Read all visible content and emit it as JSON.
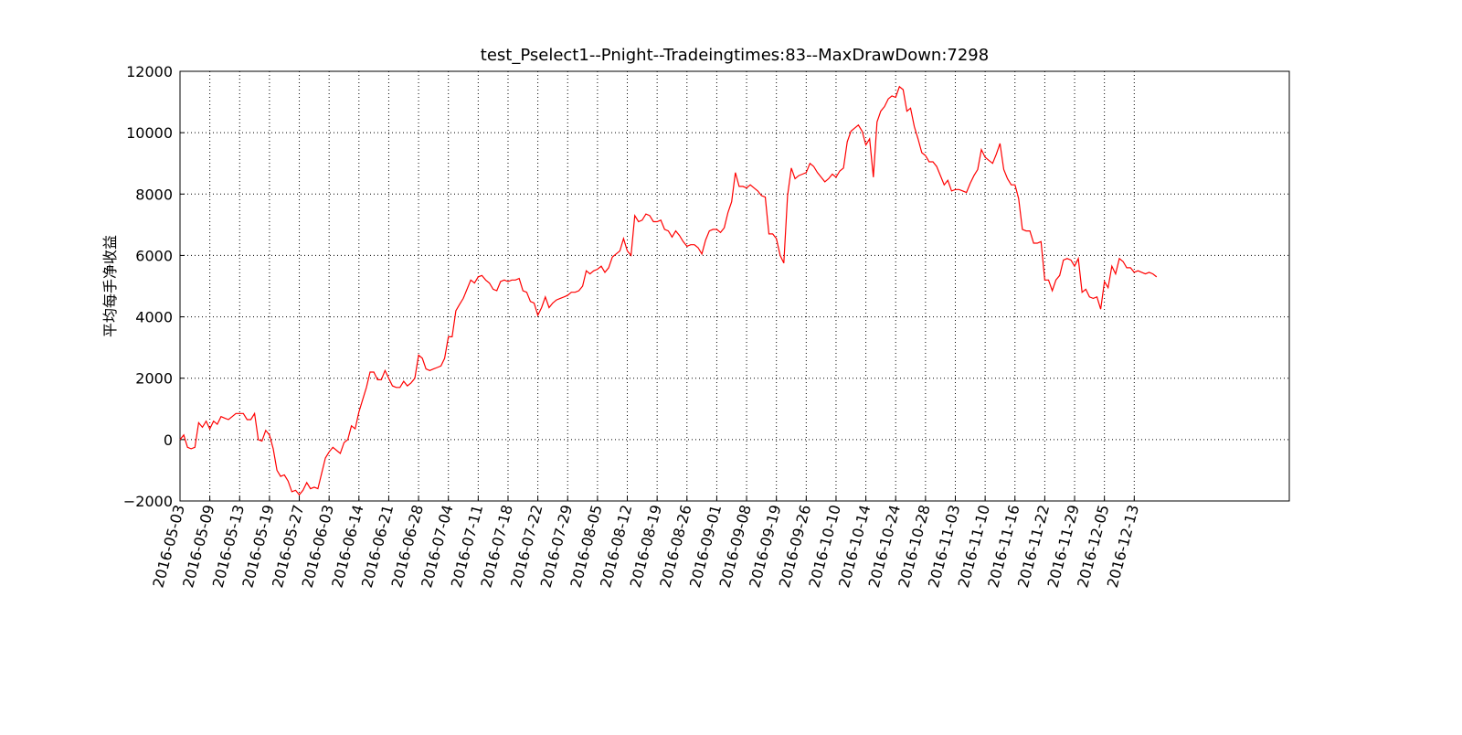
{
  "chart_data": {
    "type": "line",
    "title": "test_Pselect1--Pnight--Tradeingtimes:83--MaxDrawDown:7298",
    "ylabel": "平均每手净收益",
    "color": "#ff0000",
    "grid": true,
    "ylim": [
      -2000,
      12000
    ],
    "yticks": [
      {
        "value": -2000,
        "label": "−2000"
      },
      0,
      2000,
      4000,
      6000,
      8000,
      10000,
      12000
    ],
    "xlim": [
      0,
      297.6
    ],
    "xticks": [
      {
        "value": 0,
        "label": "2016-05-03"
      },
      {
        "value": 8,
        "label": "2016-05-09"
      },
      {
        "value": 16,
        "label": "2016-05-13"
      },
      {
        "value": 24,
        "label": "2016-05-19"
      },
      {
        "value": 32,
        "label": "2016-05-27"
      },
      {
        "value": 40,
        "label": "2016-06-03"
      },
      {
        "value": 48,
        "label": "2016-06-14"
      },
      {
        "value": 56,
        "label": "2016-06-21"
      },
      {
        "value": 64,
        "label": "2016-06-28"
      },
      {
        "value": 72,
        "label": "2016-07-04"
      },
      {
        "value": 80,
        "label": "2016-07-11"
      },
      {
        "value": 88,
        "label": "2016-07-18"
      },
      {
        "value": 96,
        "label": "2016-07-22"
      },
      {
        "value": 104,
        "label": "2016-07-29"
      },
      {
        "value": 112,
        "label": "2016-08-05"
      },
      {
        "value": 120,
        "label": "2016-08-12"
      },
      {
        "value": 128,
        "label": "2016-08-19"
      },
      {
        "value": 136,
        "label": "2016-08-26"
      },
      {
        "value": 144,
        "label": "2016-09-01"
      },
      {
        "value": 152,
        "label": "2016-09-08"
      },
      {
        "value": 160,
        "label": "2016-09-19"
      },
      {
        "value": 168,
        "label": "2016-09-26"
      },
      {
        "value": 176,
        "label": "2016-10-10"
      },
      {
        "value": 184,
        "label": "2016-10-14"
      },
      {
        "value": 192,
        "label": "2016-10-24"
      },
      {
        "value": 200,
        "label": "2016-10-28"
      },
      {
        "value": 208,
        "label": "2016-11-03"
      },
      {
        "value": 216,
        "label": "2016-11-10"
      },
      {
        "value": 224,
        "label": "2016-11-16"
      },
      {
        "value": 232,
        "label": "2016-11-22"
      },
      {
        "value": 240,
        "label": "2016-11-29"
      },
      {
        "value": 248,
        "label": "2016-12-05"
      },
      {
        "value": 256,
        "label": "2016-12-13"
      }
    ],
    "values": [
      0,
      150,
      -250,
      -300,
      -250,
      550,
      400,
      600,
      350,
      600,
      500,
      750,
      700,
      650,
      750,
      850,
      850,
      850,
      650,
      650,
      850,
      0,
      -50,
      300,
      150,
      -300,
      -1000,
      -1200,
      -1150,
      -1350,
      -1700,
      -1650,
      -1800,
      -1650,
      -1400,
      -1600,
      -1550,
      -1600,
      -1100,
      -600,
      -400,
      -250,
      -350,
      -450,
      -100,
      0,
      450,
      350,
      900,
      1300,
      1700,
      2200,
      2200,
      1950,
      1950,
      2250,
      2000,
      1750,
      1700,
      1700,
      1900,
      1750,
      1850,
      2000,
      2750,
      2650,
      2300,
      2250,
      2300,
      2350,
      2400,
      2650,
      3350,
      3350,
      4200,
      4400,
      4600,
      4900,
      5200,
      5100,
      5300,
      5350,
      5200,
      5100,
      4900,
      4850,
      5150,
      5200,
      5150,
      5200,
      5200,
      5250,
      4850,
      4800,
      4500,
      4450,
      4050,
      4300,
      4650,
      4300,
      4450,
      4550,
      4600,
      4650,
      4700,
      4800,
      4800,
      4850,
      5000,
      5500,
      5400,
      5500,
      5550,
      5650,
      5450,
      5600,
      5950,
      6050,
      6150,
      6550,
      6150,
      6000,
      7300,
      7100,
      7150,
      7350,
      7300,
      7100,
      7100,
      7150,
      6850,
      6800,
      6600,
      6800,
      6650,
      6450,
      6300,
      6350,
      6350,
      6250,
      6050,
      6500,
      6800,
      6850,
      6850,
      6750,
      6900,
      7400,
      7750,
      8700,
      8250,
      8250,
      8200,
      8300,
      8200,
      8100,
      7950,
      7900,
      6700,
      6700,
      6550,
      6000,
      5750,
      7950,
      8850,
      8500,
      8600,
      8650,
      8700,
      9000,
      8900,
      8700,
      8550,
      8400,
      8500,
      8650,
      8550,
      8750,
      8850,
      9700,
      10050,
      10150,
      10250,
      10050,
      9600,
      9800,
      8550,
      10350,
      10700,
      10850,
      11100,
      11200,
      11150,
      11500,
      11400,
      10700,
      10800,
      10200,
      9800,
      9350,
      9250,
      9050,
      9050,
      8900,
      8600,
      8300,
      8450,
      8100,
      8150,
      8150,
      8100,
      8050,
      8350,
      8600,
      8800,
      9450,
      9200,
      9100,
      9000,
      9300,
      9650,
      8800,
      8500,
      8300,
      8300,
      7850,
      6850,
      6800,
      6800,
      6400,
      6400,
      6450,
      5200,
      5200,
      4850,
      5200,
      5350,
      5850,
      5900,
      5850,
      5650,
      5900,
      4800,
      4900,
      4650,
      4600,
      4650,
      4250,
      5150,
      4950,
      5650,
      5400,
      5900,
      5800,
      5600,
      5600,
      5450,
      5500,
      5450,
      5400,
      5450,
      5400,
      5300
    ]
  }
}
